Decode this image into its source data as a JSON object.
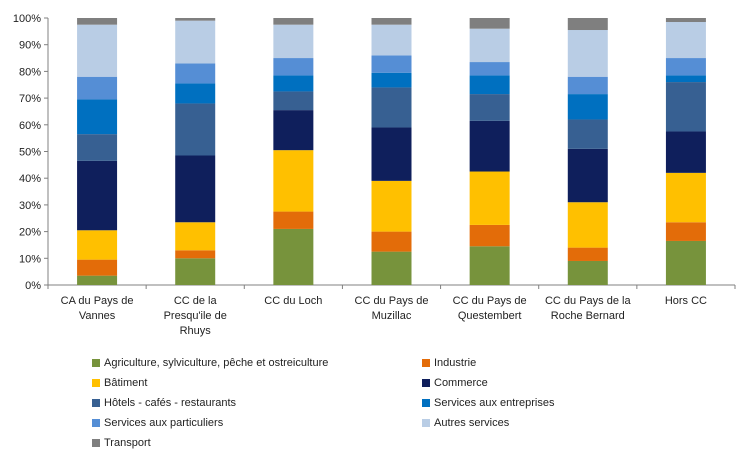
{
  "chart_data": {
    "type": "bar",
    "stacked": true,
    "categories": [
      [
        "CA du Pays de",
        "Vannes"
      ],
      [
        "CC de la",
        "Presqu'ile de",
        "Rhuys"
      ],
      [
        "CC du Loch"
      ],
      [
        "CC du Pays de",
        "Muzillac"
      ],
      [
        "CC du Pays de",
        "Questembert"
      ],
      [
        "CC du Pays de la",
        "Roche Bernard"
      ],
      [
        "Hors CC"
      ]
    ],
    "yticks": [
      "0%",
      "10%",
      "20%",
      "30%",
      "40%",
      "50%",
      "60%",
      "70%",
      "80%",
      "90%",
      "100%"
    ],
    "ylim": [
      0,
      100
    ],
    "xlabel": "",
    "ylabel": "",
    "title": "",
    "legend_position": "bottom",
    "series": [
      {
        "name": "Agriculture, sylviculture, pêche et ostreiculture",
        "color": "#77933c",
        "values": [
          3.5,
          10,
          21,
          12.5,
          14.5,
          9,
          16.5
        ]
      },
      {
        "name": "Industrie",
        "color": "#e36c09",
        "values": [
          6,
          3,
          6.5,
          7.5,
          8,
          5,
          7
        ]
      },
      {
        "name": "Bâtiment",
        "color": "#ffc000",
        "values": [
          11,
          10.5,
          23,
          19,
          20,
          17,
          18.5
        ]
      },
      {
        "name": "Commerce",
        "color": "#0f1f5c",
        "values": [
          26,
          25,
          15,
          20,
          19,
          20,
          15.5
        ]
      },
      {
        "name": "Hôtels - cafés - restaurants",
        "color": "#376092",
        "values": [
          10,
          19.5,
          7,
          15,
          10,
          11,
          18.5
        ]
      },
      {
        "name": "Services aux entreprises",
        "color": "#0070c0",
        "values": [
          13,
          7.5,
          6,
          5.5,
          7,
          9.5,
          2.5
        ]
      },
      {
        "name": "Services aux particuliers",
        "color": "#558ed5",
        "values": [
          8.5,
          7.5,
          6.5,
          6.5,
          5,
          6.5,
          6.5
        ]
      },
      {
        "name": "Autres services",
        "color": "#b9cde5",
        "values": [
          19.5,
          16,
          12.5,
          11.5,
          12.5,
          17.5,
          13.5
        ]
      },
      {
        "name": "Transport",
        "color": "#7f7f7f",
        "values": [
          2.5,
          1,
          2.5,
          2.5,
          4,
          4.5,
          1.5
        ]
      }
    ]
  }
}
